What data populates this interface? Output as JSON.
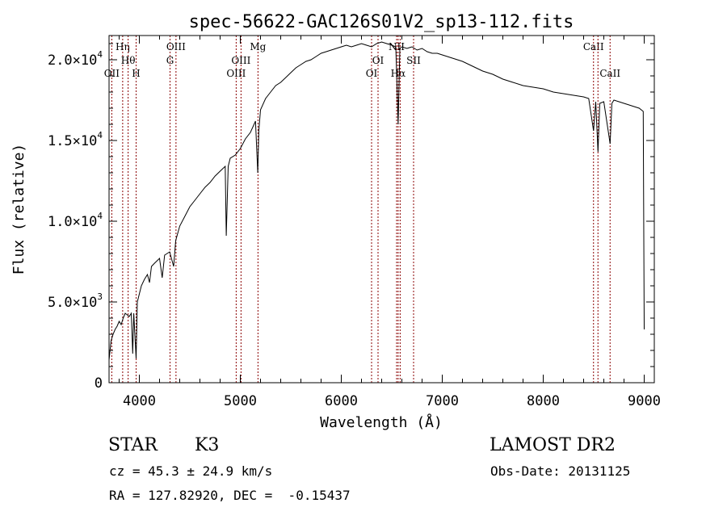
{
  "chart_data": {
    "type": "line",
    "title": "spec-56622-GAC126S01V2_sp13-112.fits",
    "xlabel": "Wavelength (Å)",
    "ylabel": "Flux (relative)",
    "xlim": [
      3700,
      9100
    ],
    "ylim": [
      0,
      21500
    ],
    "x_ticks": [
      {
        "value": 4000,
        "label": "4000"
      },
      {
        "value": 5000,
        "label": "5000"
      },
      {
        "value": 6000,
        "label": "6000"
      },
      {
        "value": 7000,
        "label": "7000"
      },
      {
        "value": 8000,
        "label": "8000"
      },
      {
        "value": 9000,
        "label": "9000"
      }
    ],
    "y_ticks": [
      {
        "value": 0,
        "mant": "0",
        "exp": ""
      },
      {
        "value": 5000,
        "mant": "5.0×10",
        "exp": "3"
      },
      {
        "value": 10000,
        "mant": "1.0×10",
        "exp": "4"
      },
      {
        "value": 15000,
        "mant": "1.5×10",
        "exp": "4"
      },
      {
        "value": 20000,
        "mant": "2.0×10",
        "exp": "4"
      }
    ],
    "grid": false,
    "line_color": "#000000",
    "marker_color": "#8b0000",
    "series": [
      {
        "x": [
          3700,
          3720,
          3740,
          3760,
          3780,
          3800,
          3820,
          3840,
          3860,
          3880,
          3900,
          3920,
          3934,
          3945,
          3968,
          3980,
          4000,
          4020,
          4050,
          4080,
          4101,
          4120,
          4150,
          4200,
          4226,
          4250,
          4300,
          4340,
          4360,
          4400,
          4450,
          4500,
          4550,
          4600,
          4650,
          4700,
          4750,
          4800,
          4850,
          4861,
          4880,
          4900,
          4950,
          5000,
          5050,
          5100,
          5150,
          5173,
          5183,
          5200,
          5250,
          5300,
          5350,
          5400,
          5450,
          5500,
          5550,
          5600,
          5650,
          5700,
          5750,
          5800,
          5850,
          5900,
          5950,
          6000,
          6050,
          6100,
          6150,
          6200,
          6250,
          6300,
          6350,
          6400,
          6450,
          6500,
          6540,
          6563,
          6580,
          6600,
          6650,
          6700,
          6750,
          6800,
          6850,
          6900,
          6950,
          7000,
          7100,
          7200,
          7300,
          7400,
          7500,
          7600,
          7700,
          7800,
          7900,
          8000,
          8100,
          8200,
          8300,
          8400,
          8450,
          8498,
          8520,
          8542,
          8560,
          8600,
          8662,
          8680,
          8700,
          8750,
          8800,
          8850,
          8900,
          8950,
          8990,
          9000
        ],
        "y": [
          1400,
          2600,
          3000,
          3300,
          3500,
          3800,
          3600,
          4000,
          4300,
          4200,
          4100,
          4300,
          1800,
          4300,
          1500,
          5000,
          5500,
          6000,
          6400,
          6700,
          6200,
          7200,
          7400,
          7700,
          6500,
          7900,
          8100,
          7200,
          8800,
          9700,
          10300,
          10900,
          11300,
          11700,
          12100,
          12400,
          12800,
          13100,
          13400,
          9100,
          13400,
          13900,
          14100,
          14500,
          15100,
          15500,
          16200,
          13000,
          15600,
          16900,
          17600,
          18000,
          18400,
          18600,
          18900,
          19200,
          19500,
          19700,
          19900,
          20000,
          20200,
          20400,
          20500,
          20600,
          20700,
          20800,
          20900,
          20800,
          20900,
          21000,
          20900,
          20800,
          21000,
          21100,
          21000,
          20900,
          20800,
          16000,
          20700,
          20800,
          20700,
          20800,
          20600,
          20700,
          20500,
          20400,
          20400,
          20300,
          20100,
          19900,
          19600,
          19300,
          19100,
          18800,
          18600,
          18400,
          18300,
          18200,
          18000,
          17900,
          17800,
          17700,
          17600,
          15600,
          17400,
          14300,
          17300,
          17400,
          14800,
          17300,
          17500,
          17400,
          17300,
          17200,
          17100,
          17000,
          16800,
          3300
        ]
      }
    ],
    "line_markers": [
      {
        "x": 3727,
        "label": "OII",
        "row": 2
      },
      {
        "x": 3835,
        "label": "Hη",
        "row": 0
      },
      {
        "x": 3889,
        "label": "Hθ",
        "row": 1
      },
      {
        "x": 3968,
        "label": "H",
        "row": 2
      },
      {
        "x": 4304,
        "label": "G",
        "row": 1
      },
      {
        "x": 4363,
        "label": "OIII",
        "row": 0
      },
      {
        "x": 4959,
        "label": "OIII",
        "row": 2
      },
      {
        "x": 5007,
        "label": "OIII",
        "row": 1
      },
      {
        "x": 5175,
        "label": "Mg",
        "row": 0
      },
      {
        "x": 6300,
        "label": "OI",
        "row": 2
      },
      {
        "x": 6364,
        "label": "OI",
        "row": 1
      },
      {
        "x": 6548,
        "label": "NII",
        "row": 0
      },
      {
        "x": 6563,
        "label": "Hα",
        "row": 2
      },
      {
        "x": 6583,
        "label": "",
        "row": 0
      },
      {
        "x": 6716,
        "label": "SII",
        "row": 1
      },
      {
        "x": 8498,
        "label": "CaII",
        "row": 0
      },
      {
        "x": 8542,
        "label": "",
        "row": 0
      },
      {
        "x": 8662,
        "label": "CaII",
        "row": 2
      }
    ]
  },
  "info": {
    "object_class": "STAR",
    "subclass": "K3",
    "redshift": "cz = 45.3 ± 24.9 km/s",
    "coordinates": "RA = 127.82920, DEC =  -0.15437",
    "survey": "LAMOST DR2",
    "obs_date": "Obs-Date: 20131125"
  }
}
